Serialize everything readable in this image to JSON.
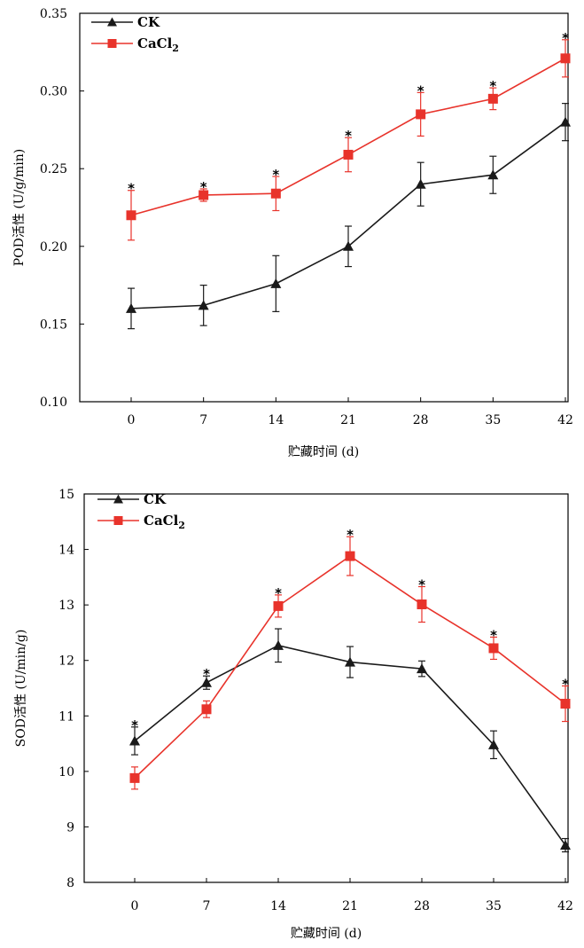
{
  "colors": {
    "ck": "#1a1a1a",
    "cacl2": "#e8332b",
    "cacl2_err": "#e8332b"
  },
  "chart_data": [
    {
      "type": "line",
      "title": "",
      "xlabel": "贮藏时间 (d)",
      "ylabel": "POD活性 (U/g/min)",
      "x": [
        0,
        7,
        14,
        21,
        28,
        35,
        42
      ],
      "x_tick_labels": [
        "0",
        "7",
        "14",
        "21",
        "28",
        "35",
        "42"
      ],
      "ylim": [
        0.1,
        0.35
      ],
      "y_ticks": [
        0.1,
        0.15,
        0.2,
        0.25,
        0.3,
        0.35
      ],
      "y_tick_labels": [
        "0.10",
        "0.15",
        "0.20",
        "0.25",
        "0.30",
        "0.35"
      ],
      "legend_position": "top-left",
      "series": [
        {
          "name": "CK",
          "marker": "triangle",
          "values": [
            0.16,
            0.162,
            0.176,
            0.2,
            0.24,
            0.246,
            0.28
          ],
          "errors": [
            0.013,
            0.013,
            0.018,
            0.013,
            0.014,
            0.012,
            0.012
          ]
        },
        {
          "name": "CaCl2",
          "marker": "square",
          "values": [
            0.22,
            0.233,
            0.234,
            0.259,
            0.285,
            0.295,
            0.321
          ],
          "errors": [
            0.016,
            0.004,
            0.011,
            0.011,
            0.014,
            0.007,
            0.012
          ]
        }
      ],
      "significance": [
        "*",
        "*",
        "*",
        "*",
        "*",
        "*",
        "*"
      ]
    },
    {
      "type": "line",
      "title": "",
      "xlabel": "贮藏时间 (d)",
      "ylabel": "SOD活性 (U/min/g)",
      "x": [
        0,
        7,
        14,
        21,
        28,
        35,
        42
      ],
      "x_tick_labels": [
        "0",
        "7",
        "14",
        "21",
        "28",
        "35",
        "42"
      ],
      "ylim": [
        8,
        15
      ],
      "y_ticks": [
        8,
        9,
        10,
        11,
        12,
        13,
        14,
        15
      ],
      "y_tick_labels": [
        "8",
        "9",
        "10",
        "11",
        "12",
        "13",
        "14",
        "15"
      ],
      "legend_position": "top-left",
      "series": [
        {
          "name": "CK",
          "marker": "triangle",
          "values": [
            10.55,
            11.6,
            12.27,
            11.97,
            11.85,
            10.48,
            8.67
          ],
          "errors": [
            0.25,
            0.12,
            0.3,
            0.28,
            0.14,
            0.25,
            0.12
          ]
        },
        {
          "name": "CaCl2",
          "marker": "square",
          "values": [
            9.88,
            11.12,
            12.98,
            13.88,
            13.01,
            12.22,
            11.22
          ],
          "errors": [
            0.2,
            0.15,
            0.2,
            0.35,
            0.32,
            0.2,
            0.32
          ]
        }
      ],
      "significance": [
        "*",
        "*",
        "*",
        "*",
        "*",
        "*",
        "*"
      ]
    }
  ]
}
